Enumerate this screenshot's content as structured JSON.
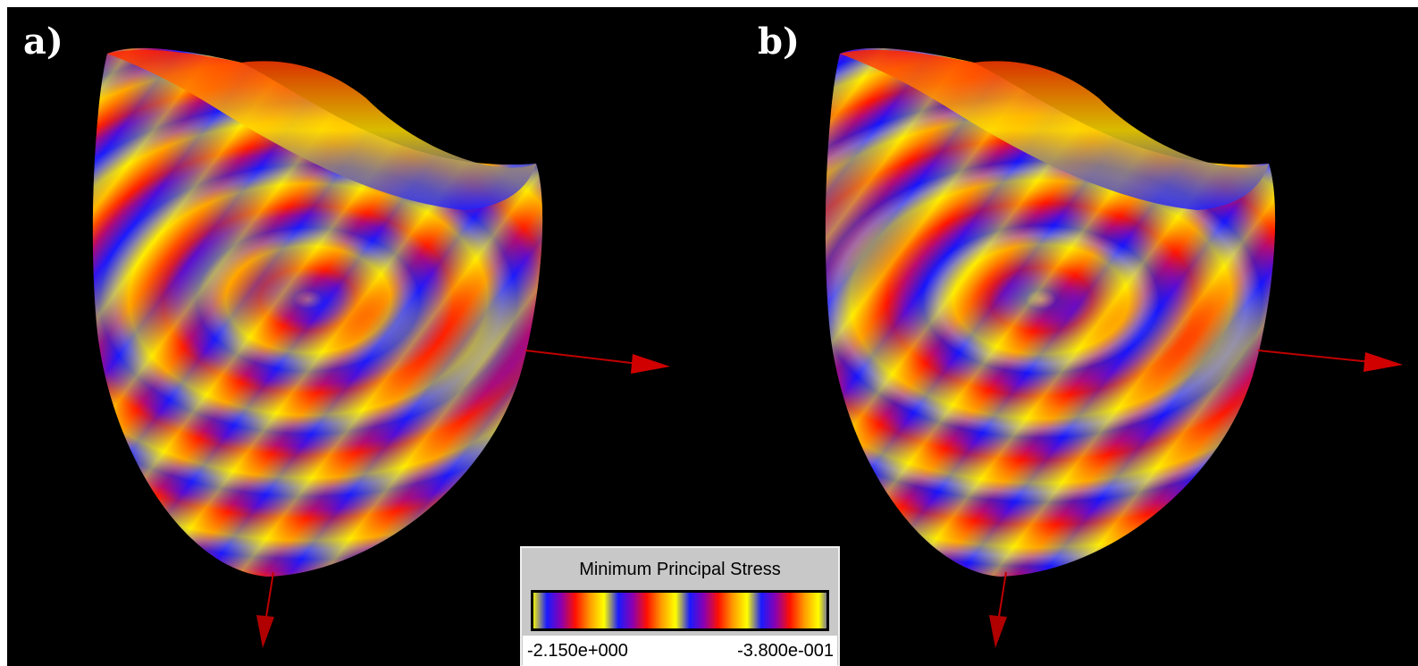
{
  "panels": [
    {
      "label": "a)"
    },
    {
      "label": "b)"
    }
  ],
  "legend": {
    "title": "Minimum Principal Stress",
    "min_label": "-2.150e+000",
    "max_label": "-3.800e-001"
  }
}
